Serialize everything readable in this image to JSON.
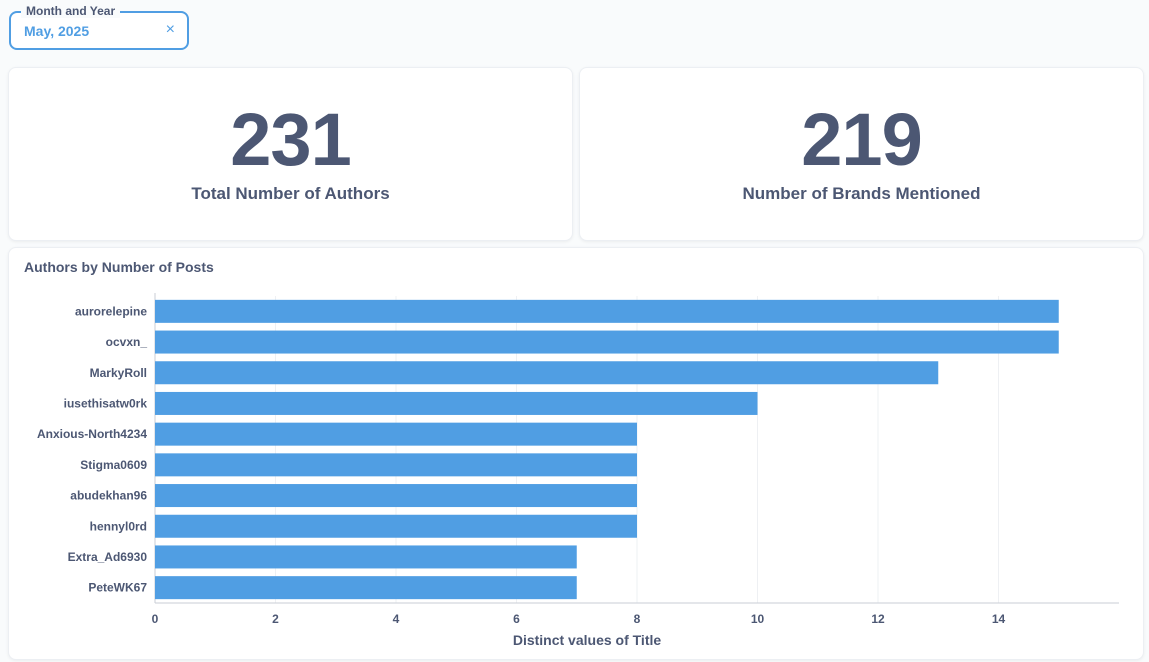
{
  "filter": {
    "legend": "Month and Year",
    "value": "May, 2025",
    "clear_icon": "×"
  },
  "kpis": [
    {
      "value": "231",
      "label": "Total Number of Authors"
    },
    {
      "value": "219",
      "label": "Number of Brands Mentioned"
    }
  ],
  "colors": {
    "accent": "#509ee3",
    "text": "#4c5773",
    "bar": "#509ee3"
  },
  "chart": {
    "title": "Authors by Number of Posts"
  },
  "chart_data": {
    "type": "bar",
    "orientation": "horizontal",
    "categories": [
      "aurorelepine",
      "ocvxn_",
      "MarkyRoll",
      "iusethisatw0rk",
      "Anxious-North4234",
      "Stigma0609",
      "abudekhan96",
      "hennyl0rd",
      "Extra_Ad6930",
      "PeteWK67"
    ],
    "values": [
      15,
      15,
      13,
      10,
      8,
      8,
      8,
      8,
      7,
      7
    ],
    "xlabel": "Distinct values of Title",
    "ylabel": "",
    "xlim": [
      0,
      16
    ],
    "xticks": [
      0,
      2,
      4,
      6,
      8,
      10,
      12,
      14
    ],
    "grid": true
  }
}
